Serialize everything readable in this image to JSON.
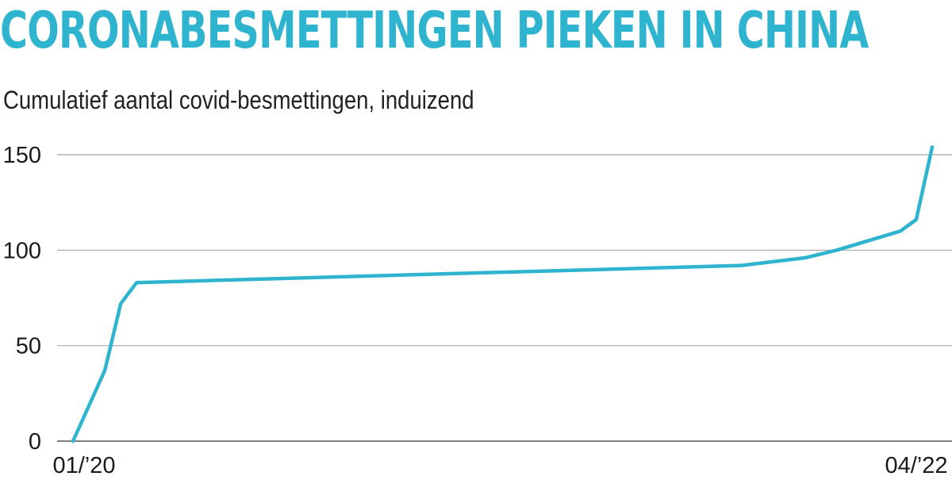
{
  "chart_data": {
    "type": "line",
    "title": "CORONABESMETTINGEN PIEKEN IN CHINA",
    "subtitle": "Cumulatief aantal covid-besmettingen, induizend",
    "xlabel": "",
    "ylabel": "",
    "ylim": [
      0,
      150
    ],
    "y_ticks": [
      "0",
      "50",
      "100",
      "150"
    ],
    "x_tick_labels": [
      "01/’20",
      "04/’22"
    ],
    "grid": true,
    "line_color": "#2fb4cf",
    "x": [
      "2020-01",
      "2020-02",
      "2020-02",
      "2020-03",
      "2021-10",
      "2021-12",
      "2022-01",
      "2022-02",
      "2022-03",
      "2022-03",
      "2022-04"
    ],
    "values": [
      0,
      37,
      72,
      83,
      92,
      96,
      100,
      105,
      110,
      116,
      154
    ]
  }
}
